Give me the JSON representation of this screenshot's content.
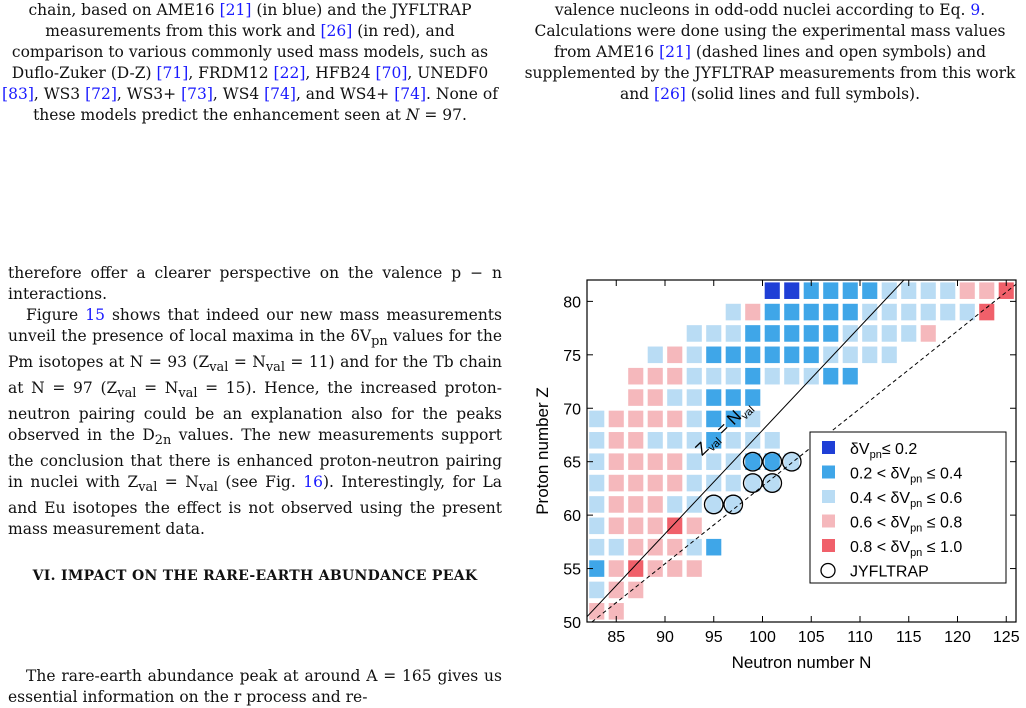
{
  "caption_left": {
    "parts": [
      "chain, based on AME16 ",
      "[21]",
      " (in blue) and the JYFLTRAP measurements from this work and ",
      "[26]",
      " (in red), and comparison to various commonly used mass models, such as Duflo-Zuker (D-Z) ",
      "[71]",
      ", FRDM12 ",
      "[22]",
      ", HFB24 ",
      "[70]",
      ", UNEDF0 ",
      "[83]",
      ", WS3 ",
      "[72]",
      ", WS3+ ",
      "[73]",
      ", WS4 ",
      "[74]",
      ", and WS4+ ",
      "[74]",
      ". None of these models predict the enhancement seen at ",
      "N",
      " = 97."
    ]
  },
  "caption_right": {
    "parts": [
      "valence nucleons in odd-odd nuclei according to Eq. ",
      "9",
      ". Calculations were done using the experimental mass values from AME16 ",
      "[21]",
      " (dashed lines and open symbols) and supplemented by the JYFLTRAP measurements from this work and ",
      "[26]",
      " (solid lines and full symbols)."
    ]
  },
  "body": {
    "p1": "therefore offer a clearer perspective on the valence p − n interactions.",
    "p2": {
      "a": "Figure ",
      "fig": "15",
      "b": " shows that indeed our new mass measurements unveil the presence of local maxima in the δV",
      "sub": "pn",
      "c": " values for the Pm isotopes at N = 93 (Z",
      "d": "val",
      "e": " = N",
      "f": "val",
      "g": " = 11) and for the Tb chain at N = 97 (Z",
      "h": "val",
      "i": " = N",
      "j": "val",
      "k": " = 15). Hence, the increased proton-neutron pairing could be an explanation also for the peaks observed in the D",
      "l": "2n",
      "m": " values. The new measurements support the conclusion that there is enhanced proton-neutron pairing in nuclei with Z",
      "n": "val",
      "o": " = N",
      "p": "val",
      "q": " (see Fig. ",
      "fig2": "16",
      "r": "). Interestingly, for La and Eu isotopes the effect is not observed using the present mass measurement data."
    },
    "section_title": "VI.   IMPACT ON THE RARE-EARTH ABUNDANCE PEAK",
    "p3": "The rare-earth abundance peak at around A = 165 gives us essential information on the r process and re-"
  },
  "chart_data": {
    "type": "heatmap",
    "xlabel": "Neutron number N",
    "ylabel": "Proton number Z",
    "xlim": [
      82,
      126
    ],
    "ylim": [
      50,
      82
    ],
    "xticks": [
      85,
      90,
      95,
      100,
      105,
      110,
      115,
      120,
      125
    ],
    "yticks": [
      50,
      55,
      60,
      65,
      70,
      75,
      80
    ],
    "diagonal_label": "Z_val = N_val",
    "legend": [
      {
        "label": "δVpn≤ 0.2",
        "color": "#1f3fd6"
      },
      {
        "label": "0.2 < δVpn ≤ 0.4",
        "color": "#3fa6e8"
      },
      {
        "label": "0.4 < δVpn ≤ 0.6",
        "color": "#b9dcf4"
      },
      {
        "label": "0.6 < δVpn ≤ 0.8",
        "color": "#f5b8bc"
      },
      {
        "label": "0.8 < δVpn ≤ 1.0",
        "color": "#f0606a"
      },
      {
        "label": "JYFLTRAP",
        "marker": "open-circle"
      }
    ],
    "cells": [
      [
        83,
        51,
        4
      ],
      [
        85,
        51,
        4
      ],
      [
        83,
        53,
        3
      ],
      [
        85,
        53,
        4
      ],
      [
        87,
        53,
        4
      ],
      [
        83,
        55,
        2
      ],
      [
        85,
        55,
        4
      ],
      [
        87,
        55,
        5
      ],
      [
        89,
        55,
        4
      ],
      [
        91,
        55,
        4
      ],
      [
        93,
        55,
        4
      ],
      [
        83,
        57,
        3
      ],
      [
        85,
        57,
        3
      ],
      [
        87,
        57,
        4
      ],
      [
        89,
        57,
        4
      ],
      [
        91,
        57,
        4
      ],
      [
        93,
        57,
        3
      ],
      [
        95,
        57,
        2
      ],
      [
        83,
        59,
        3
      ],
      [
        85,
        59,
        4
      ],
      [
        87,
        59,
        4
      ],
      [
        89,
        59,
        4
      ],
      [
        91,
        59,
        5
      ],
      [
        93,
        59,
        4
      ],
      [
        83,
        61,
        3
      ],
      [
        85,
        61,
        4
      ],
      [
        87,
        61,
        4
      ],
      [
        89,
        61,
        4
      ],
      [
        91,
        61,
        3
      ],
      [
        93,
        61,
        3
      ],
      [
        95,
        61,
        3
      ],
      [
        97,
        61,
        3
      ],
      [
        83,
        63,
        3
      ],
      [
        85,
        63,
        4
      ],
      [
        87,
        63,
        4
      ],
      [
        89,
        63,
        4
      ],
      [
        91,
        63,
        4
      ],
      [
        93,
        63,
        3
      ],
      [
        95,
        63,
        3
      ],
      [
        97,
        63,
        3
      ],
      [
        99,
        63,
        3
      ],
      [
        101,
        63,
        3
      ],
      [
        83,
        65,
        3
      ],
      [
        85,
        65,
        4
      ],
      [
        87,
        65,
        4
      ],
      [
        89,
        65,
        4
      ],
      [
        91,
        65,
        4
      ],
      [
        93,
        65,
        3
      ],
      [
        95,
        65,
        3
      ],
      [
        97,
        65,
        3
      ],
      [
        99,
        65,
        2
      ],
      [
        101,
        65,
        2
      ],
      [
        103,
        65,
        3
      ],
      [
        83,
        67,
        3
      ],
      [
        85,
        67,
        4
      ],
      [
        87,
        67,
        4
      ],
      [
        89,
        67,
        3
      ],
      [
        91,
        67,
        3
      ],
      [
        93,
        67,
        3
      ],
      [
        95,
        67,
        2
      ],
      [
        97,
        67,
        3
      ],
      [
        99,
        67,
        3
      ],
      [
        101,
        67,
        3
      ],
      [
        83,
        69,
        3
      ],
      [
        85,
        69,
        4
      ],
      [
        87,
        69,
        4
      ],
      [
        89,
        69,
        4
      ],
      [
        91,
        69,
        4
      ],
      [
        93,
        69,
        3
      ],
      [
        95,
        69,
        2
      ],
      [
        97,
        69,
        2
      ],
      [
        99,
        69,
        3
      ],
      [
        87,
        71,
        4
      ],
      [
        89,
        71,
        4
      ],
      [
        91,
        71,
        3
      ],
      [
        93,
        71,
        3
      ],
      [
        95,
        71,
        2
      ],
      [
        97,
        71,
        2
      ],
      [
        99,
        71,
        2
      ],
      [
        87,
        73,
        4
      ],
      [
        89,
        73,
        4
      ],
      [
        91,
        73,
        4
      ],
      [
        93,
        73,
        3
      ],
      [
        95,
        73,
        3
      ],
      [
        97,
        73,
        3
      ],
      [
        99,
        73,
        2
      ],
      [
        101,
        73,
        3
      ],
      [
        103,
        73,
        3
      ],
      [
        105,
        73,
        3
      ],
      [
        107,
        73,
        2
      ],
      [
        109,
        73,
        2
      ],
      [
        89,
        75,
        3
      ],
      [
        91,
        75,
        4
      ],
      [
        93,
        75,
        3
      ],
      [
        95,
        75,
        2
      ],
      [
        97,
        75,
        2
      ],
      [
        99,
        75,
        2
      ],
      [
        101,
        75,
        2
      ],
      [
        103,
        75,
        2
      ],
      [
        105,
        75,
        2
      ],
      [
        107,
        75,
        3
      ],
      [
        109,
        75,
        3
      ],
      [
        111,
        75,
        3
      ],
      [
        113,
        75,
        3
      ],
      [
        93,
        77,
        3
      ],
      [
        95,
        77,
        3
      ],
      [
        97,
        77,
        3
      ],
      [
        99,
        77,
        2
      ],
      [
        101,
        77,
        2
      ],
      [
        103,
        77,
        2
      ],
      [
        105,
        77,
        2
      ],
      [
        107,
        77,
        2
      ],
      [
        109,
        77,
        3
      ],
      [
        111,
        77,
        3
      ],
      [
        113,
        77,
        3
      ],
      [
        115,
        77,
        3
      ],
      [
        117,
        77,
        4
      ],
      [
        97,
        79,
        3
      ],
      [
        99,
        79,
        4
      ],
      [
        101,
        79,
        2
      ],
      [
        103,
        79,
        2
      ],
      [
        105,
        79,
        2
      ],
      [
        107,
        79,
        2
      ],
      [
        109,
        79,
        2
      ],
      [
        111,
        79,
        3
      ],
      [
        113,
        79,
        3
      ],
      [
        115,
        79,
        3
      ],
      [
        117,
        79,
        3
      ],
      [
        119,
        79,
        3
      ],
      [
        121,
        79,
        3
      ],
      [
        123,
        79,
        5
      ],
      [
        101,
        81,
        1
      ],
      [
        103,
        81,
        1
      ],
      [
        105,
        81,
        2
      ],
      [
        107,
        81,
        2
      ],
      [
        109,
        81,
        2
      ],
      [
        111,
        81,
        2
      ],
      [
        113,
        81,
        3
      ],
      [
        115,
        81,
        3
      ],
      [
        117,
        81,
        3
      ],
      [
        119,
        81,
        3
      ],
      [
        121,
        81,
        4
      ],
      [
        123,
        81,
        4
      ],
      [
        125,
        81,
        5
      ]
    ],
    "jyfltrap_points": [
      [
        95,
        61
      ],
      [
        97,
        61
      ],
      [
        99,
        63
      ],
      [
        101,
        63
      ],
      [
        99,
        65
      ],
      [
        101,
        65
      ],
      [
        103,
        65
      ]
    ]
  }
}
